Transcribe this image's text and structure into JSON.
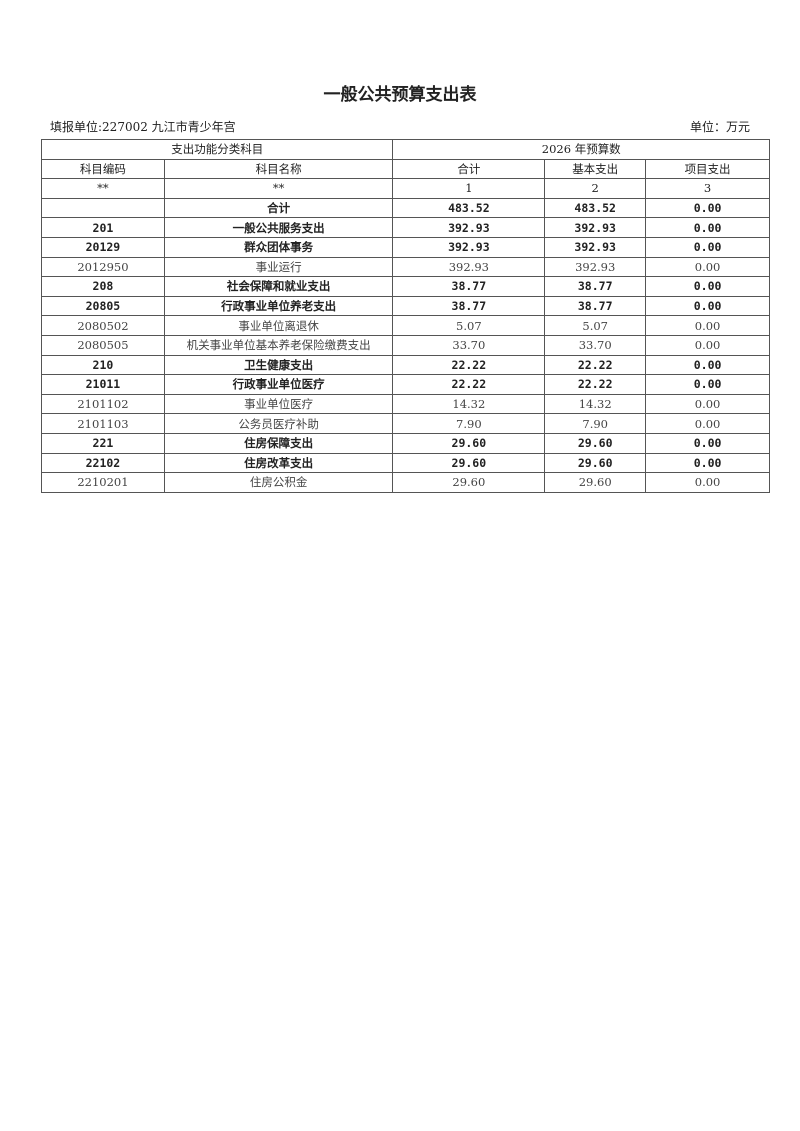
{
  "title": "一般公共预算支出表",
  "org": "填报单位:227002 九江市青少年宫",
  "unit": "单位：万元",
  "header": {
    "group1": "支出功能分类科目",
    "group2": "2026 年预算数",
    "code": "科目编码",
    "name": "科目名称",
    "total": "合计",
    "basic": "基本支出",
    "project": "项目支出",
    "r_code": "**",
    "r_name": "**",
    "r_total": "1",
    "r_basic": "2",
    "r_project": "3"
  },
  "rows": [
    {
      "code": "",
      "name": "合计",
      "total": "483.52",
      "basic": "483.52",
      "project": "0.00",
      "bold": true
    },
    {
      "code": "201",
      "name": "一般公共服务支出",
      "total": "392.93",
      "basic": "392.93",
      "project": "0.00",
      "bold": true
    },
    {
      "code": "20129",
      "name": "群众团体事务",
      "total": "392.93",
      "basic": "392.93",
      "project": "0.00",
      "bold": true
    },
    {
      "code": "2012950",
      "name": "事业运行",
      "total": "392.93",
      "basic": "392.93",
      "project": "0.00",
      "bold": false
    },
    {
      "code": "208",
      "name": "社会保障和就业支出",
      "total": "38.77",
      "basic": "38.77",
      "project": "0.00",
      "bold": true
    },
    {
      "code": "20805",
      "name": "行政事业单位养老支出",
      "total": "38.77",
      "basic": "38.77",
      "project": "0.00",
      "bold": true
    },
    {
      "code": "2080502",
      "name": "事业单位离退休",
      "total": "5.07",
      "basic": "5.07",
      "project": "0.00",
      "bold": false
    },
    {
      "code": "2080505",
      "name": "机关事业单位基本养老保险缴费支出",
      "total": "33.70",
      "basic": "33.70",
      "project": "0.00",
      "bold": false
    },
    {
      "code": "210",
      "name": "卫生健康支出",
      "total": "22.22",
      "basic": "22.22",
      "project": "0.00",
      "bold": true
    },
    {
      "code": "21011",
      "name": "行政事业单位医疗",
      "total": "22.22",
      "basic": "22.22",
      "project": "0.00",
      "bold": true
    },
    {
      "code": "2101102",
      "name": "事业单位医疗",
      "total": "14.32",
      "basic": "14.32",
      "project": "0.00",
      "bold": false
    },
    {
      "code": "2101103",
      "name": "公务员医疗补助",
      "total": "7.90",
      "basic": "7.90",
      "project": "0.00",
      "bold": false
    },
    {
      "code": "221",
      "name": "住房保障支出",
      "total": "29.60",
      "basic": "29.60",
      "project": "0.00",
      "bold": true
    },
    {
      "code": "22102",
      "name": "住房改革支出",
      "total": "29.60",
      "basic": "29.60",
      "project": "0.00",
      "bold": true
    },
    {
      "code": "2210201",
      "name": "住房公积金",
      "total": "29.60",
      "basic": "29.60",
      "project": "0.00",
      "bold": false
    }
  ]
}
